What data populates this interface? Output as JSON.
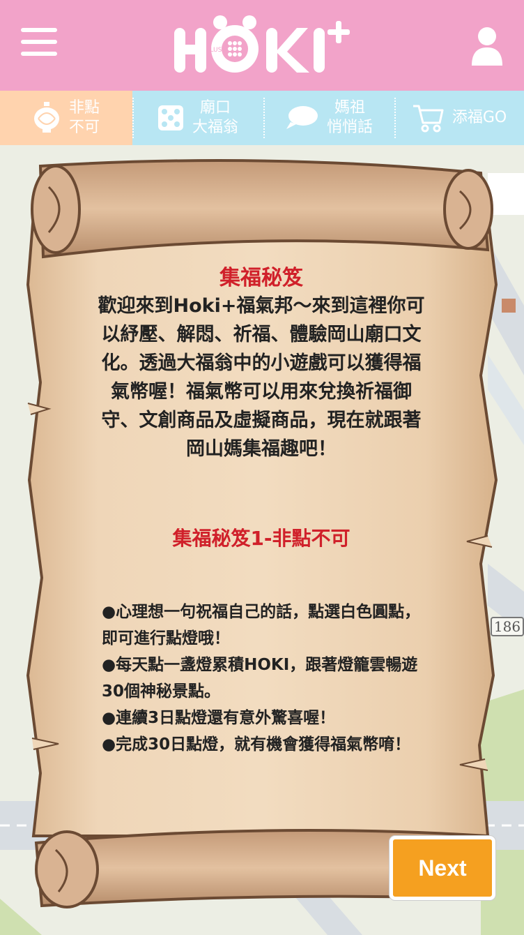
{
  "header": {
    "logo_text": "HOKI",
    "logo_small": "PLUS",
    "logo_plus": "+"
  },
  "tabs": [
    {
      "line1": "非點",
      "line2": "不可",
      "icon": "lantern-icon",
      "active": true
    },
    {
      "line1": "廟口",
      "line2": "大福翁",
      "icon": "dice-icon",
      "active": false
    },
    {
      "line1": "媽祖",
      "line2": "悄悄話",
      "icon": "speech-bubble-icon",
      "active": false
    },
    {
      "line1": "添福GO",
      "icon": "cart-icon",
      "active": false
    }
  ],
  "map": {
    "route_number": "186"
  },
  "scroll": {
    "title": "集福秘笈",
    "intro": "歡迎來到Hoki+福氣邦～來到這裡你可以紓壓、解悶、祈福、體驗岡山廟口文化。透過大福翁中的小遊戲可以獲得福氣幣喔！福氣幣可以用來兌換祈福御守、文創商品及虛擬商品，現在就跟著岡山媽集福趣吧！",
    "section_title": "集福秘笈1-非點不可",
    "bullets": [
      "●心理想一句祝福自己的話，點選白色圓點，即可進行點燈哦！",
      "●每天點一盞燈累積HOKI，跟著燈籠雲暢遊30個神秘景點。",
      "●連續3日點燈還有意外驚喜喔！",
      "●完成30日點燈，就有機會獲得福氣幣唷！"
    ]
  },
  "next_label": "Next",
  "colors": {
    "header": "#f2a3c9",
    "tabbar": "#b8e6f3",
    "tab_active": "#ffd3ae",
    "title_red": "#d0202a",
    "next_button": "#f5a020",
    "parchment": "#ecd1b0"
  }
}
